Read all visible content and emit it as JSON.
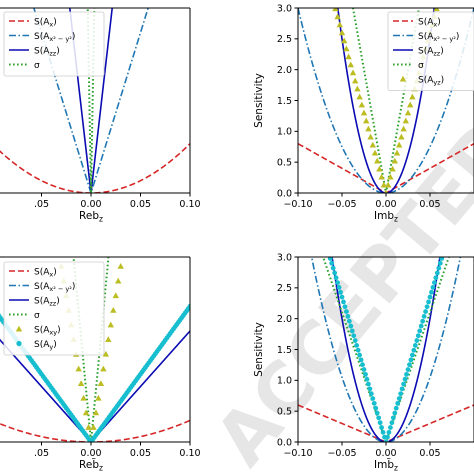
{
  "chart_data": [
    {
      "type": "line",
      "xlabel": "Reb$_z$",
      "xlabel_parts": [
        "Reb",
        "z"
      ],
      "ylabel": "",
      "xlim": [
        -0.1,
        0.1
      ],
      "ylim": [
        0,
        3.0
      ],
      "xticks": [
        -0.05,
        0.0,
        0.05,
        0.1
      ],
      "xtick_labels": [
        ".05",
        "0.00",
        "0.05",
        "0.10"
      ],
      "yticks": [],
      "ytick_labels": [],
      "legend": "top-left",
      "series": [
        {
          "name": "S(A_x)",
          "label_parts": [
            "S(A",
            "x",
            ")"
          ],
          "style": "dashed",
          "color": "#d62728",
          "k": 80,
          "p": 2
        },
        {
          "name": "S(A_{x^2-y^2})",
          "label_parts": [
            "S(A",
            "x² − y²",
            ")"
          ],
          "style": "dashdot",
          "color": "#1f77b4",
          "k": 52,
          "p": 1
        },
        {
          "name": "S(A_zz)",
          "label_parts": [
            "S(A",
            "zz",
            ")"
          ],
          "style": "solid",
          "color": "#0b0bb3",
          "k": 140,
          "p": 1
        },
        {
          "name": "σ",
          "label_parts": [
            "σ",
            "",
            ""
          ],
          "style": "dotted",
          "color": "#2ca02c",
          "k": 900,
          "p": 1
        }
      ]
    },
    {
      "type": "line",
      "xlabel": "Imb$_z$",
      "xlabel_parts": [
        "Imb",
        "z"
      ],
      "ylabel": "Sensitivity",
      "xlim": [
        -0.1,
        0.1
      ],
      "ylim": [
        0,
        3.0
      ],
      "xticks": [
        -0.1,
        -0.05,
        0.0,
        0.05
      ],
      "xtick_labels": [
        "−0.10",
        "−0.05",
        "0.00",
        "0.05"
      ],
      "yticks": [
        0.0,
        0.5,
        1.0,
        1.5,
        2.0,
        2.5,
        3.0
      ],
      "ytick_labels": [
        "0.0",
        "0.5",
        "1.0",
        "1.5",
        "2.0",
        "2.5",
        "3.0"
      ],
      "legend": "top-right",
      "series": [
        {
          "name": "S(A_x)",
          "label_parts": [
            "S(A",
            "x",
            ")"
          ],
          "style": "dashed",
          "color": "#d62728",
          "k": 8,
          "p": 1
        },
        {
          "name": "S(A_{x^2-y^2})",
          "label_parts": [
            "S(A",
            "x² − y²",
            ")"
          ],
          "style": "dashdot",
          "color": "#1f77b4",
          "k": 300,
          "p": 2
        },
        {
          "name": "S(A_zz)",
          "label_parts": [
            "S(A",
            "zz",
            ")"
          ],
          "style": "solid",
          "color": "#0b0bb3",
          "k": 1000,
          "p": 2
        },
        {
          "name": "σ",
          "label_parts": [
            "σ",
            "",
            ""
          ],
          "style": "dotted",
          "color": "#2ca02c",
          "k": 80,
          "p": 1
        },
        {
          "name": "S(A_yz)",
          "label_parts": [
            "S(A",
            "yz",
            ")"
          ],
          "style": "triangles",
          "color": "#bcbd22",
          "k": 52,
          "p": 1
        }
      ]
    },
    {
      "type": "line",
      "xlabel": "Reb̃$_z$",
      "xlabel_parts": [
        "Reb̃",
        "z"
      ],
      "ylabel": "",
      "xlim": [
        -0.1,
        0.1
      ],
      "ylim": [
        0,
        3.0
      ],
      "xticks": [
        -0.05,
        0.0,
        0.05,
        0.1
      ],
      "xtick_labels": [
        ".05",
        "0.00",
        "0.05",
        "0.10"
      ],
      "yticks": [],
      "ytick_labels": [],
      "legend": "top-left",
      "series": [
        {
          "name": "S(A_x)",
          "label_parts": [
            "S(A",
            "x",
            ")"
          ],
          "style": "dashed",
          "color": "#d62728",
          "k": 35,
          "p": 2
        },
        {
          "name": "S(A_{x^2-y^2})",
          "label_parts": [
            "S(A",
            "x² − y²",
            ")"
          ],
          "style": "dashdot",
          "color": "#1f77b4",
          "k": 22,
          "p": 1
        },
        {
          "name": "S(A_zz)",
          "label_parts": [
            "S(A",
            "zz",
            ")"
          ],
          "style": "solid",
          "color": "#0b0bb3",
          "k": 18,
          "p": 1
        },
        {
          "name": "σ",
          "label_parts": [
            "σ",
            "",
            ""
          ],
          "style": "dotted",
          "color": "#2ca02c",
          "k": 170,
          "p": 1
        },
        {
          "name": "S(A_xy)",
          "label_parts": [
            "S(A",
            "xy",
            ")"
          ],
          "style": "triangles",
          "color": "#bcbd22",
          "k": 95,
          "p": 1
        },
        {
          "name": "S(A_y)",
          "label_parts": [
            "S(A",
            "y",
            ")"
          ],
          "style": "dots",
          "color": "#17becf",
          "k": 22,
          "p": 1
        }
      ]
    },
    {
      "type": "line",
      "xlabel": "Imb̃$_z$",
      "xlabel_parts": [
        "Imb̃",
        "z"
      ],
      "ylabel": "Sensitivity",
      "xlim": [
        -0.1,
        0.1
      ],
      "ylim": [
        0,
        3.0
      ],
      "xticks": [
        -0.1,
        -0.05,
        0.0,
        0.05
      ],
      "xtick_labels": [
        "−0.10",
        "−0.05",
        "0.00",
        "0.05"
      ],
      "yticks": [
        0.0,
        0.5,
        1.0,
        1.5,
        2.0,
        2.5,
        3.0
      ],
      "ytick_labels": [
        "0.0",
        "0.5",
        "1.0",
        "1.5",
        "2.0",
        "2.5",
        "3.0"
      ],
      "legend": "none",
      "series": [
        {
          "name": "S(A_x)",
          "label_parts": [
            "S(A",
            "x",
            ")"
          ],
          "style": "dashed",
          "color": "#d62728",
          "k": 6,
          "p": 1
        },
        {
          "name": "S(A_{x^2-y^2})",
          "label_parts": [
            "S(A",
            "x² − y²",
            ")"
          ],
          "style": "dashdot",
          "color": "#1f77b4",
          "k": 420,
          "p": 2
        },
        {
          "name": "S(A_zz)",
          "label_parts": [
            "S(A",
            "zz",
            ")"
          ],
          "style": "solid",
          "color": "#0b0bb3",
          "k": 800,
          "p": 2
        },
        {
          "name": "σ",
          "label_parts": [
            "σ",
            "",
            ""
          ],
          "style": "dotted",
          "color": "#2ca02c",
          "k": 42,
          "p": 1
        },
        {
          "name": "S(A_y)",
          "label_parts": [
            "S(A",
            "y",
            ")"
          ],
          "style": "dots",
          "color": "#17becf",
          "k": 47,
          "p": 1
        }
      ]
    }
  ],
  "watermark": "ACCEPTED PROOF"
}
